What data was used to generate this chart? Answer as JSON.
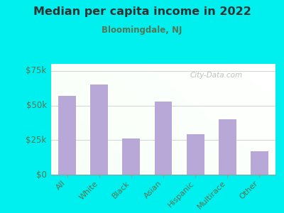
{
  "title": "Median per capita income in 2022",
  "subtitle": "Bloomingdale, NJ",
  "categories": [
    "All",
    "White",
    "Black",
    "Asian",
    "Hispanic",
    "Multirace",
    "Other"
  ],
  "values": [
    57000,
    65000,
    26000,
    53000,
    29000,
    40000,
    17000
  ],
  "bar_color": "#b8a8d8",
  "background_outer": "#00efef",
  "title_color": "#333333",
  "subtitle_color": "#557755",
  "tick_color": "#557755",
  "ylim": [
    0,
    80000
  ],
  "yticks": [
    0,
    25000,
    50000,
    75000
  ],
  "ytick_labels": [
    "$0",
    "$25k",
    "$50k",
    "$75k"
  ],
  "watermark": "City-Data.com",
  "bar_width": 0.55
}
